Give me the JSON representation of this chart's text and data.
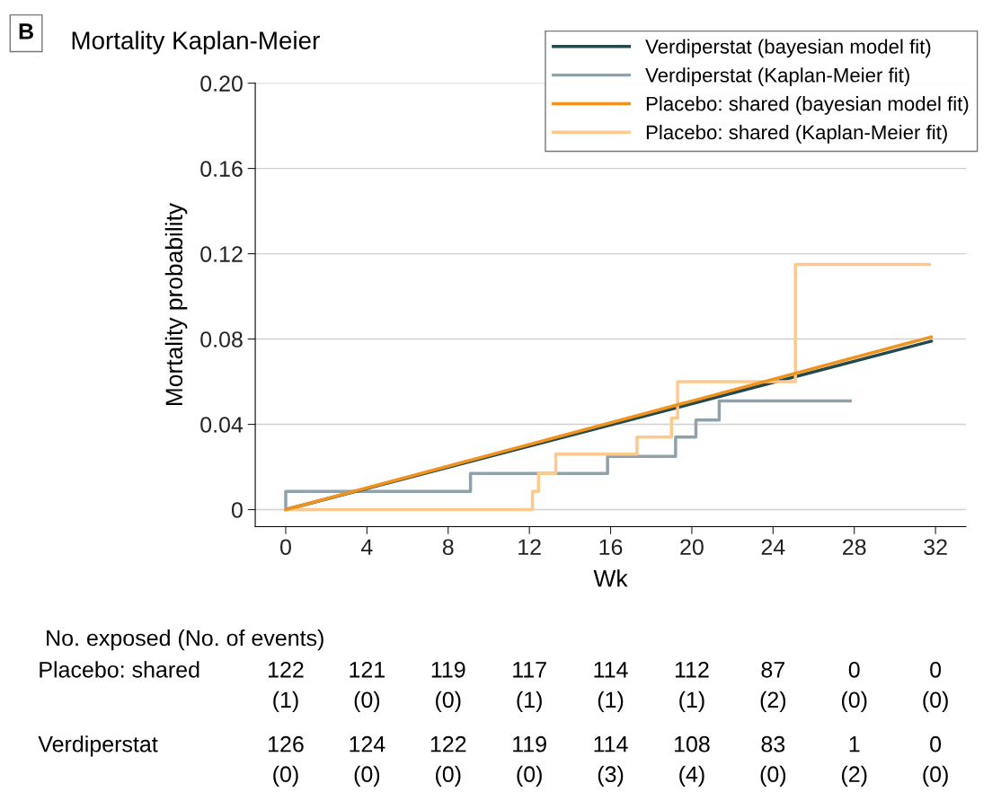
{
  "chart_data": {
    "type": "step",
    "title": "Mortality Kaplan-Meier",
    "xlabel": "Wk",
    "ylabel": "Mortality probability",
    "xlim": [
      -1.5,
      33.5
    ],
    "ylim": [
      -0.008,
      0.2
    ],
    "xticks": [
      0,
      4,
      8,
      12,
      16,
      20,
      24,
      28,
      32
    ],
    "yticks": [
      {
        "value": 0.2,
        "label": "0.20"
      },
      0.16,
      0.12,
      {
        "value": 0.08,
        "label": "0.08"
      },
      {
        "value": 0.04,
        "label": "0.04"
      },
      0
    ],
    "grid": "y",
    "legend": "top right",
    "line_style": "solid",
    "marker": "none",
    "series": [
      {
        "name": "Verdiperstat (bayesian model fit)",
        "type": "line",
        "color": "#24494d",
        "x": [
          0,
          31.8
        ],
        "values": [
          0,
          0.079
        ]
      },
      {
        "name": "Verdiperstat (Kaplan-Meier fit)",
        "color": "#8fa2ab",
        "x": [
          0,
          0.001,
          9.1,
          15.85,
          19.2,
          20.2,
          21.35,
          27.8
        ],
        "values": [
          0,
          0.0085,
          0.017,
          0.025,
          0.034,
          0.042,
          0.051,
          0.051
        ]
      },
      {
        "name": "Placebo: shared (bayesian model fit)",
        "type": "line",
        "color": "#f0921e",
        "x": [
          0,
          31.8
        ],
        "values": [
          0,
          0.081
        ]
      },
      {
        "name": "Placebo: shared (Kaplan-Meier fit)",
        "color": "#fdc98c",
        "x": [
          0,
          12.15,
          12.45,
          13.3,
          17.3,
          19.0,
          19.3,
          25.1,
          31.7
        ],
        "values": [
          0,
          0.0085,
          0.017,
          0.026,
          0.034,
          0.043,
          0.06,
          0.115,
          0.115
        ]
      }
    ],
    "annotations": [
      "B",
      "No. exposed (No. of events)",
      "Placebo: shared",
      "122",
      "121",
      "119",
      "117",
      "114",
      "112",
      "87",
      "0",
      "0",
      "(1)",
      "(0)",
      "(0)",
      "(1)",
      "(1)",
      "(1)",
      "(2)",
      "(0)",
      "(0)",
      "Verdiperstat",
      "126",
      "124",
      "122",
      "119",
      "114",
      "108",
      "83",
      "1",
      "0",
      "(0)",
      "(0)",
      "(0)",
      "(0)",
      "(3)",
      "(4)",
      "(0)",
      "(2)",
      "(0)"
    ]
  }
}
